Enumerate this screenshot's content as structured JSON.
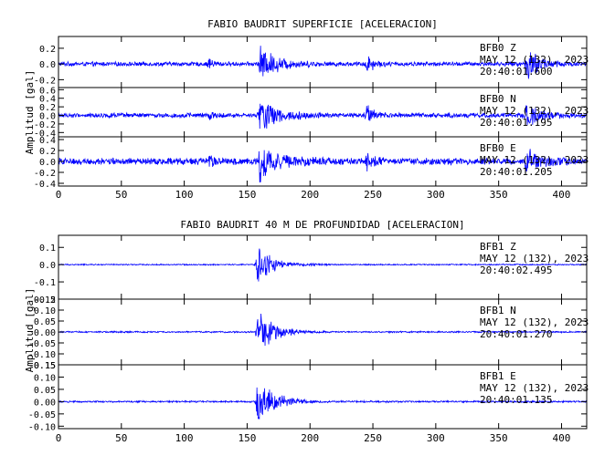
{
  "chart_data": [
    {
      "type": "line",
      "title": "FABIO BAUDRIT SUPERFICIE [ACELERACION]",
      "ylabel": "Amplitud [gal]",
      "xlim": [
        0,
        420
      ],
      "x_ticks": [
        0,
        50,
        100,
        150,
        200,
        250,
        300,
        350,
        400
      ],
      "line_color": "#0000ff",
      "grid": false,
      "traces": [
        {
          "station": "BFB0",
          "component": "Z",
          "date_line": "MAY 12 (132), 2023",
          "time_line": "20:40:01.600",
          "ylim": [
            -0.3,
            0.35
          ],
          "y_ticks": [
            {
              "v": 0.2,
              "label": "0.2"
            },
            {
              "v": 0.0,
              "label": "0.0"
            },
            {
              "v": -0.2,
              "label": "-0.2"
            }
          ],
          "noise": 0.03,
          "bursts": [
            {
              "t": 120,
              "a": 0.1,
              "w": 3
            },
            {
              "t": 160,
              "a": 0.24,
              "w": 14
            },
            {
              "t": 245,
              "a": 0.15,
              "w": 5
            },
            {
              "t": 372,
              "a": 0.26,
              "w": 10
            }
          ]
        },
        {
          "station": "BFB0",
          "component": "N",
          "date_line": "MAY 12 (132), 2023",
          "time_line": "20:40:01.195",
          "ylim": [
            -0.5,
            0.65
          ],
          "y_ticks": [
            {
              "v": 0.6,
              "label": "0.6"
            },
            {
              "v": 0.4,
              "label": "0.4"
            },
            {
              "v": 0.2,
              "label": "0.2"
            },
            {
              "v": 0.0,
              "label": "0.0"
            },
            {
              "v": -0.2,
              "label": "-0.2"
            },
            {
              "v": -0.4,
              "label": "-0.4"
            }
          ],
          "noise": 0.06,
          "bursts": [
            {
              "t": 120,
              "a": 0.15,
              "w": 3
            },
            {
              "t": 160,
              "a": 0.45,
              "w": 14
            },
            {
              "t": 245,
              "a": 0.25,
              "w": 5
            },
            {
              "t": 372,
              "a": 0.35,
              "w": 10
            }
          ]
        },
        {
          "station": "BFB0",
          "component": "E",
          "date_line": "MAY 12 (132), 2023",
          "time_line": "20:40:01.205",
          "ylim": [
            -0.45,
            0.45
          ],
          "y_ticks": [
            {
              "v": 0.4,
              "label": "0.4"
            },
            {
              "v": 0.2,
              "label": "0.2"
            },
            {
              "v": 0.0,
              "label": "0.0"
            },
            {
              "v": -0.2,
              "label": "-0.2"
            },
            {
              "v": -0.4,
              "label": "-0.4"
            }
          ],
          "noise": 0.07,
          "bursts": [
            {
              "t": 120,
              "a": 0.12,
              "w": 3
            },
            {
              "t": 160,
              "a": 0.38,
              "w": 14
            },
            {
              "t": 245,
              "a": 0.18,
              "w": 5
            },
            {
              "t": 372,
              "a": 0.25,
              "w": 10
            }
          ]
        }
      ]
    },
    {
      "type": "line",
      "title": "FABIO BAUDRIT 40 M DE PROFUNDIDAD [ACELERACION]",
      "ylabel": "Amplitud [gal]",
      "xlim": [
        0,
        420
      ],
      "x_ticks": [
        0,
        50,
        100,
        150,
        200,
        250,
        300,
        350,
        400
      ],
      "line_color": "#0000ff",
      "grid": false,
      "traces": [
        {
          "station": "BFB1",
          "component": "Z",
          "date_line": "MAY 12 (132), 2023",
          "time_line": "20:40:02.495",
          "ylim": [
            -0.2,
            0.17
          ],
          "y_ticks": [
            {
              "v": 0.1,
              "label": "0.1"
            },
            {
              "v": 0.0,
              "label": "0.0"
            },
            {
              "v": -0.1,
              "label": "-0.1"
            },
            {
              "v": -0.2,
              "label": "-0.2"
            }
          ],
          "noise": 0.004,
          "bursts": [
            {
              "t": 158,
              "a": 0.16,
              "w": 10
            },
            {
              "t": 200,
              "a": 0.005,
              "w": 10
            }
          ]
        },
        {
          "station": "BFB1",
          "component": "N",
          "date_line": "MAY 12 (132), 2023",
          "time_line": "20:40:01.270",
          "ylim": [
            -0.15,
            0.15
          ],
          "y_ticks": [
            {
              "v": 0.15,
              "label": "0.15"
            },
            {
              "v": 0.1,
              "label": "0.10"
            },
            {
              "v": 0.05,
              "label": "0.05"
            },
            {
              "v": 0.0,
              "label": "0.00"
            },
            {
              "v": -0.05,
              "label": "-0.05"
            },
            {
              "v": -0.1,
              "label": "-0.10"
            },
            {
              "v": -0.15,
              "label": "-0.15"
            }
          ],
          "noise": 0.004,
          "bursts": [
            {
              "t": 158,
              "a": 0.12,
              "w": 12
            }
          ]
        },
        {
          "station": "BFB1",
          "component": "E",
          "date_line": "MAY 12 (132), 2023",
          "time_line": "20:40:01.135",
          "ylim": [
            -0.11,
            0.15
          ],
          "y_ticks": [
            {
              "v": 0.15,
              "label": "0.15"
            },
            {
              "v": 0.1,
              "label": "0.10"
            },
            {
              "v": 0.05,
              "label": "0.05"
            },
            {
              "v": 0.0,
              "label": "0.00"
            },
            {
              "v": -0.05,
              "label": "-0.05"
            },
            {
              "v": -0.1,
              "label": "-0.10"
            }
          ],
          "noise": 0.004,
          "bursts": [
            {
              "t": 158,
              "a": 0.13,
              "w": 12
            }
          ]
        }
      ]
    }
  ]
}
